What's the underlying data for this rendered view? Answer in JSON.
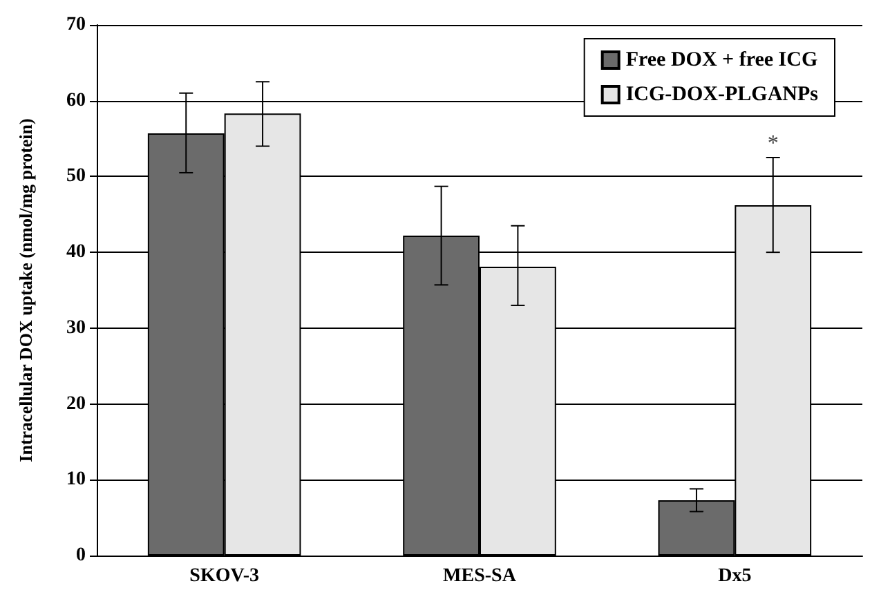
{
  "chart_data": {
    "type": "bar",
    "ylabel": "Intracellular DOX uptake (nmol/mg protein)",
    "categories": [
      "SKOV-3",
      "MES-SA",
      "Dx5"
    ],
    "series": [
      {
        "name": "Free DOX + free ICG",
        "color": "#6b6b6b",
        "values": [
          55.7,
          42.2,
          7.3
        ],
        "errors": [
          [
            50.5,
            61
          ],
          [
            35.7,
            48.7
          ],
          [
            5.8,
            8.8
          ]
        ]
      },
      {
        "name": "ICG-DOX-PLGANPs",
        "color": "#e6e6e6",
        "values": [
          58.3,
          38.1,
          46.2
        ],
        "errors": [
          [
            54,
            62.5
          ],
          [
            33,
            43.5
          ],
          [
            40,
            52.5
          ]
        ]
      }
    ],
    "ylim": [
      0,
      70
    ],
    "yticks": [
      0,
      10,
      20,
      30,
      40,
      50,
      60,
      70
    ],
    "grid": "y",
    "legend": "top right",
    "annotations": [
      "*"
    ]
  }
}
